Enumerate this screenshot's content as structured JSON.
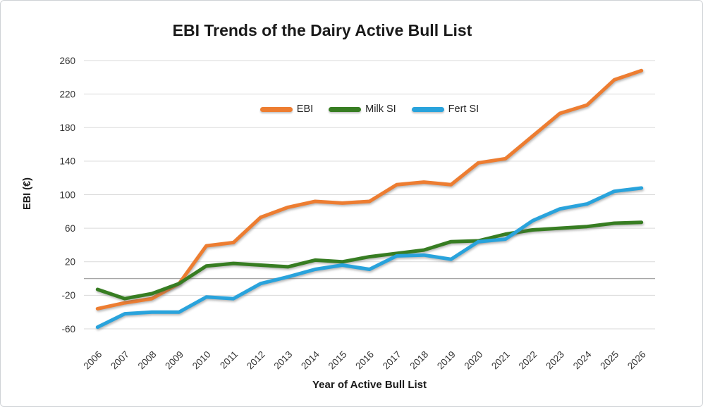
{
  "figure": {
    "title": "EBI Trends of the Dairy Active Bull List",
    "x_axis_title": "Year of Active Bull List",
    "y_axis_title": "EBI (€)"
  },
  "chart_data": {
    "type": "line",
    "title": "EBI Trends of the Dairy Active Bull List",
    "xlabel": "Year of Active Bull List",
    "ylabel": "EBI (€)",
    "x": [
      "2006",
      "2007",
      "2008",
      "2009",
      "2010",
      "2011",
      "2012",
      "2013",
      "2014",
      "2015",
      "2016",
      "2017",
      "2018",
      "2019",
      "2020",
      "2021",
      "2022",
      "2023",
      "2024",
      "2025",
      "2026"
    ],
    "series": [
      {
        "name": "EBI",
        "color": "#ED7D31",
        "values": [
          -36,
          -29,
          -24,
          -6,
          39,
          43,
          73,
          85,
          92,
          90,
          92,
          112,
          115,
          112,
          138,
          143,
          170,
          197,
          207,
          237,
          248
        ]
      },
      {
        "name": "Milk SI",
        "color": "#377D22",
        "values": [
          -13,
          -24,
          -18,
          -6,
          15,
          18,
          16,
          14,
          22,
          20,
          26,
          30,
          34,
          44,
          45,
          53,
          58,
          60,
          62,
          66,
          67
        ]
      },
      {
        "name": "Fert SI",
        "color": "#29A3DC",
        "values": [
          -58,
          -42,
          -40,
          -40,
          -22,
          -24,
          -6,
          2,
          11,
          16,
          11,
          27,
          28,
          23,
          44,
          47,
          69,
          83,
          89,
          104,
          108
        ]
      }
    ],
    "ylim": [
      -60,
      260
    ],
    "y_ticks": [
      260,
      220,
      180,
      140,
      100,
      60,
      20,
      -20,
      -60
    ],
    "grid": true,
    "zero_axis_line": true,
    "legend_position": "top-center",
    "gridline_color": "#D9D9D9",
    "axis_line_color": "#A6A6A6",
    "tick_label_color": "#333333"
  }
}
